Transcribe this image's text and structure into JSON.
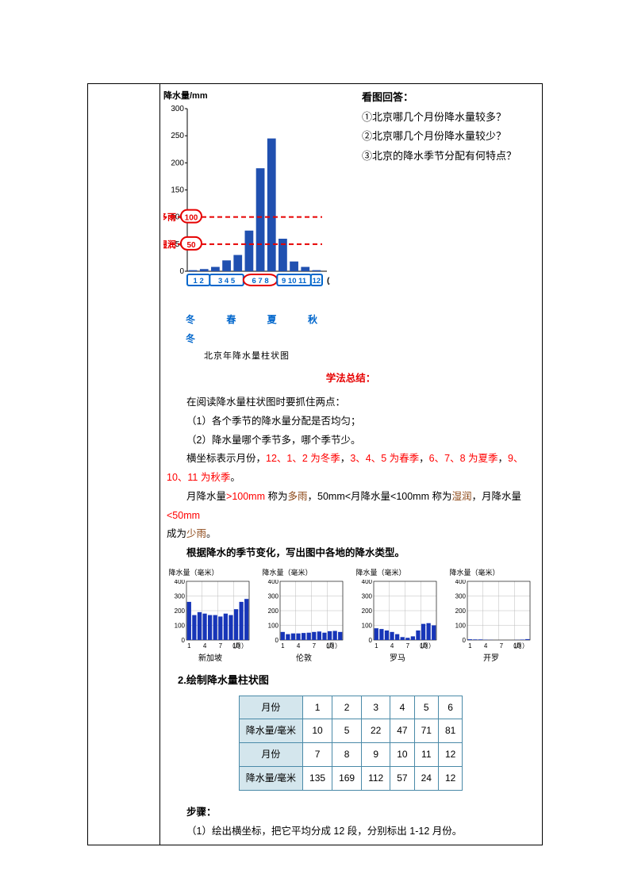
{
  "questions_header": "看图回答：",
  "questions": [
    "①北京哪几个月份降水量较多？",
    "②北京哪几个月份降水量较少？",
    "③北京的降水季节分配有何特点？"
  ],
  "main_chart": {
    "type": "bar",
    "y_label_title": "降水量/mm",
    "x_label": "(月份)",
    "categories": [
      "1",
      "2",
      "3",
      "4",
      "5",
      "6",
      "7",
      "8",
      "9",
      "10",
      "11",
      "12"
    ],
    "values": [
      2,
      4,
      8,
      20,
      30,
      75,
      190,
      245,
      60,
      18,
      8,
      2
    ],
    "bar_color": "#2050b0",
    "ylim": [
      0,
      300
    ],
    "ytick_step": 50,
    "yticks": [
      0,
      50,
      100,
      150,
      200,
      250,
      300
    ],
    "ref_lines": [
      {
        "value": 100,
        "label": "多雨",
        "ybox": "100",
        "color": "#e60000"
      },
      {
        "value": 50,
        "label": "湿润",
        "ybox": "50",
        "color": "#e60000"
      }
    ],
    "seasons": "冬 春 夏 秋 冬",
    "caption": "北京年降水量柱状图",
    "x_groups_blue": [
      "1  2",
      "3 4 5",
      "9 10 11",
      "12"
    ],
    "x_group_red_oval": "6 7 8",
    "axis_color": "#000000",
    "grid_on": false
  },
  "method_title": "学法总结：",
  "reading_intro": "在阅读降水量柱状图时要抓住两点：",
  "reading_points": [
    "（1）各个季节的降水量分配是否均匀；",
    "（2）降水量哪个季节多，哪个季节少。"
  ],
  "axis_note": {
    "prefix": "横坐标表示月份，",
    "p1": "12、1、2 为冬季",
    "sep1": "，",
    "p2": "3、4、5 为春季",
    "sep2": "，",
    "p3": "6、7、8 为夏季",
    "sep3": "，",
    "p4": "9、",
    "p4b": "10、11 为秋季",
    "end": "。"
  },
  "threshold_note": {
    "t1a": "月降水量",
    "t1b": ">100mm",
    "t1c": " 称为",
    "t1d": "多雨",
    "t1e": "，50mm<月降水量<100mm 称为",
    "t1f": "湿润",
    "t1g": "，月降水量",
    "t1h": "<50mm",
    "t2a": "成为",
    "t2b": "少雨",
    "t2c": "。"
  },
  "task_line": "根据降水的季节变化，写出图中各地的降水类型。",
  "small_charts": [
    {
      "name": "新加坡",
      "type": "bar",
      "title": "降水量（毫米）",
      "values": [
        260,
        170,
        190,
        180,
        170,
        170,
        160,
        180,
        170,
        210,
        260,
        280
      ],
      "ymax": 400,
      "yticks": [
        0,
        100,
        200,
        300,
        400
      ],
      "bar_color": "#1735b8",
      "xmax": 12,
      "xticks": [
        1,
        4,
        7,
        10
      ],
      "xlabel": "（月）"
    },
    {
      "name": "伦敦",
      "type": "bar",
      "title": "降水量（毫米）",
      "values": [
        55,
        40,
        45,
        45,
        48,
        50,
        55,
        58,
        50,
        60,
        62,
        55
      ],
      "ymax": 400,
      "yticks": [
        0,
        100,
        200,
        300,
        400
      ],
      "bar_color": "#1735b8",
      "xmax": 12,
      "xticks": [
        1,
        4,
        7,
        10
      ],
      "xlabel": "（月）"
    },
    {
      "name": "罗马",
      "type": "bar",
      "title": "降水量（毫米）",
      "values": [
        80,
        75,
        65,
        55,
        40,
        20,
        15,
        25,
        65,
        110,
        115,
        100
      ],
      "ymax": 400,
      "yticks": [
        0,
        100,
        200,
        300,
        400
      ],
      "bar_color": "#1735b8",
      "xmax": 12,
      "xticks": [
        1,
        4,
        7,
        10
      ],
      "xlabel": "（月）"
    },
    {
      "name": "开罗",
      "type": "bar",
      "title": "降水量（毫米）",
      "values": [
        5,
        4,
        4,
        2,
        1,
        0,
        0,
        0,
        0,
        1,
        3,
        6
      ],
      "ymax": 400,
      "yticks": [
        0,
        100,
        200,
        300,
        400
      ],
      "bar_color": "#1735b8",
      "xmax": 12,
      "xticks": [
        1,
        4,
        7,
        10
      ],
      "xlabel": "（月）"
    }
  ],
  "section2_title": "2.绘制降水量柱状图",
  "data_table": {
    "row_labels": [
      "月份",
      "降水量/毫米",
      "月份",
      "降水量/毫米"
    ],
    "row1": [
      "1",
      "2",
      "3",
      "4",
      "5",
      "6"
    ],
    "row2": [
      "10",
      "5",
      "22",
      "47",
      "71",
      "81"
    ],
    "row3": [
      "7",
      "8",
      "9",
      "10",
      "11",
      "12"
    ],
    "row4": [
      "135",
      "169",
      "112",
      "57",
      "24",
      "12"
    ],
    "header_bg": "#d4e6ed",
    "border_color": "#4a8aa8"
  },
  "steps_label": "步骤：",
  "step1": "（1）绘出横坐标，把它平均分成 12 段，分别标出 1-12 月份。"
}
